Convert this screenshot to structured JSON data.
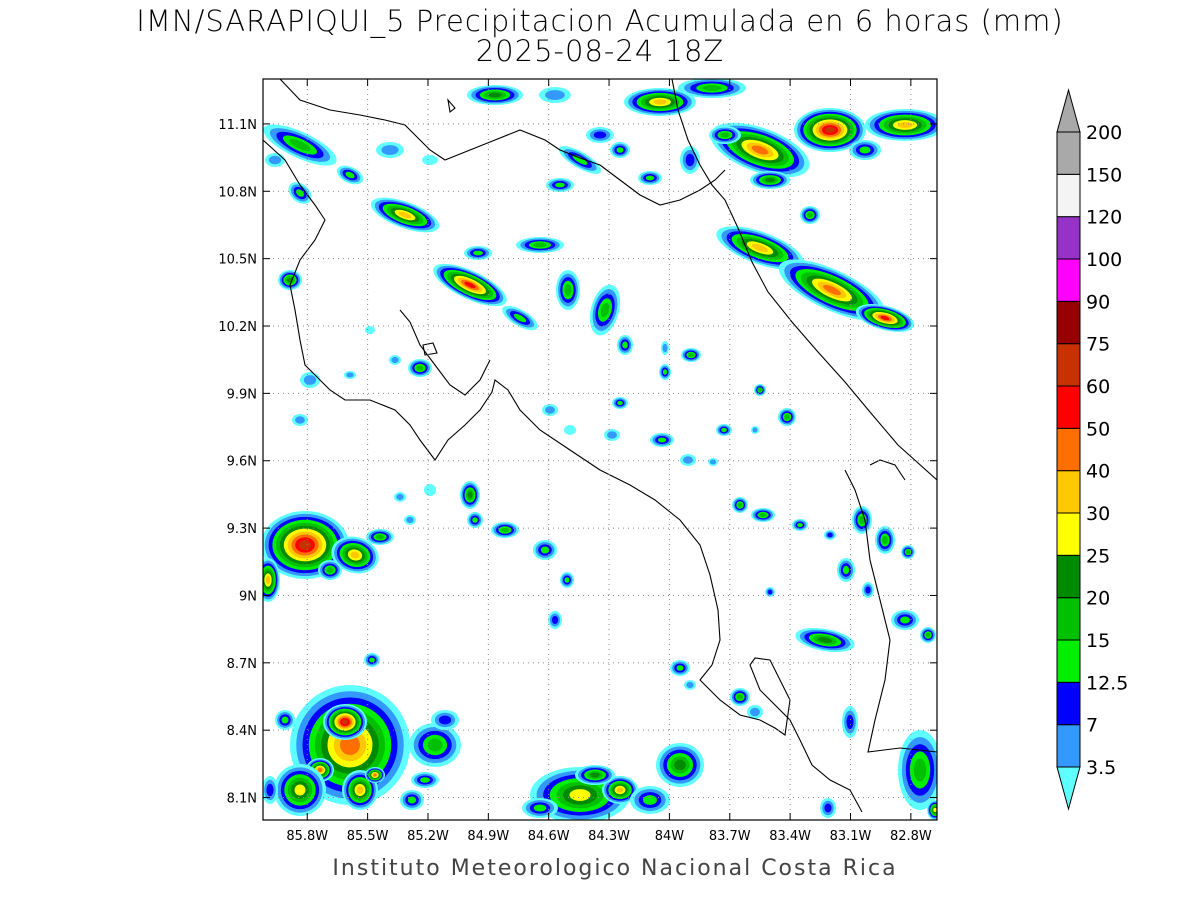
{
  "title": {
    "line1": "IMN/SARAPIQUI_5 Precipitacion Acumulada en 6 horas (mm)",
    "line2": "2025-08-24 18Z"
  },
  "footer": "Instituto Meteorologico Nacional Costa Rica",
  "map": {
    "lon_range": [
      -86.02,
      -82.67
    ],
    "lat_range": [
      8.0,
      11.3
    ],
    "lon_ticks": [
      "85.8W",
      "85.5W",
      "85.2W",
      "84.9W",
      "84.6W",
      "84.3W",
      "84W",
      "83.7W",
      "83.4W",
      "83.1W",
      "82.8W"
    ],
    "lat_ticks": [
      "8.1N",
      "8.4N",
      "8.7N",
      "9N",
      "9.3N",
      "9.6N",
      "9.9N",
      "10.2N",
      "10.5N",
      "10.8N",
      "11.1N"
    ],
    "grid": true
  },
  "colorbar": {
    "labels": [
      "3.5",
      "7",
      "12.5",
      "15",
      "20",
      "25",
      "30",
      "40",
      "50",
      "60",
      "75",
      "90",
      "100",
      "120",
      "150",
      "200"
    ],
    "colors": [
      "#5fffff",
      "#3399ff",
      "#0000ff",
      "#00ee00",
      "#00c000",
      "#008a00",
      "#ffff00",
      "#ffc800",
      "#ff6e00",
      "#ff0000",
      "#c83200",
      "#960000",
      "#ff00ff",
      "#9632c8",
      "#f4f4f4",
      "#a9a9a9"
    ]
  }
}
